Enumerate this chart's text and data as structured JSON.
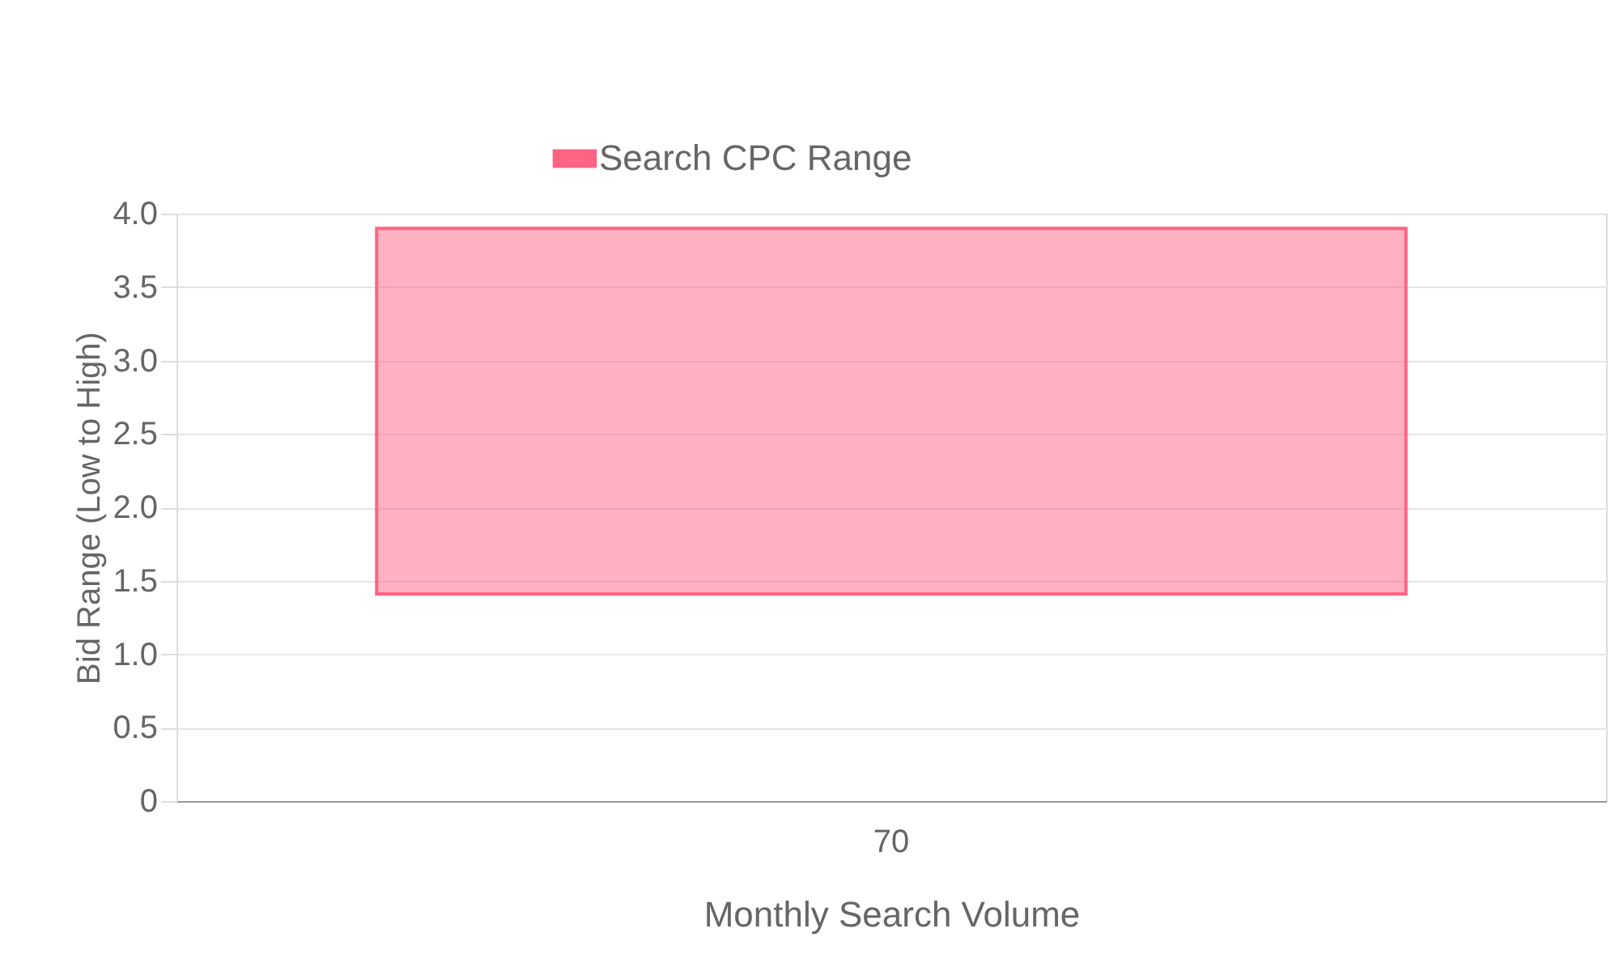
{
  "chart_data": {
    "type": "bar",
    "xlabel": "Monthly Search Volume",
    "ylabel": "Bid Range (Low to High)",
    "categories": [
      "70"
    ],
    "series": [
      {
        "name": "Search CPC Range",
        "color": "#ff6384",
        "values": [
          2.49
        ],
        "base": [
          1.41
        ]
      }
    ],
    "ylim": [
      0,
      4
    ],
    "yticks": [
      0,
      {
        "value": 0.5,
        "label": "0.5"
      },
      {
        "value": 1,
        "label": "1.0"
      },
      {
        "value": 1.5,
        "label": "1.5"
      },
      {
        "value": 2,
        "label": "2.0"
      },
      {
        "value": 2.5,
        "label": "2.5"
      },
      {
        "value": 3,
        "label": "3.0"
      },
      {
        "value": 3.5,
        "label": "3.5"
      },
      {
        "value": 4,
        "label": "4.0"
      }
    ],
    "grid": "y",
    "legend": "top"
  }
}
